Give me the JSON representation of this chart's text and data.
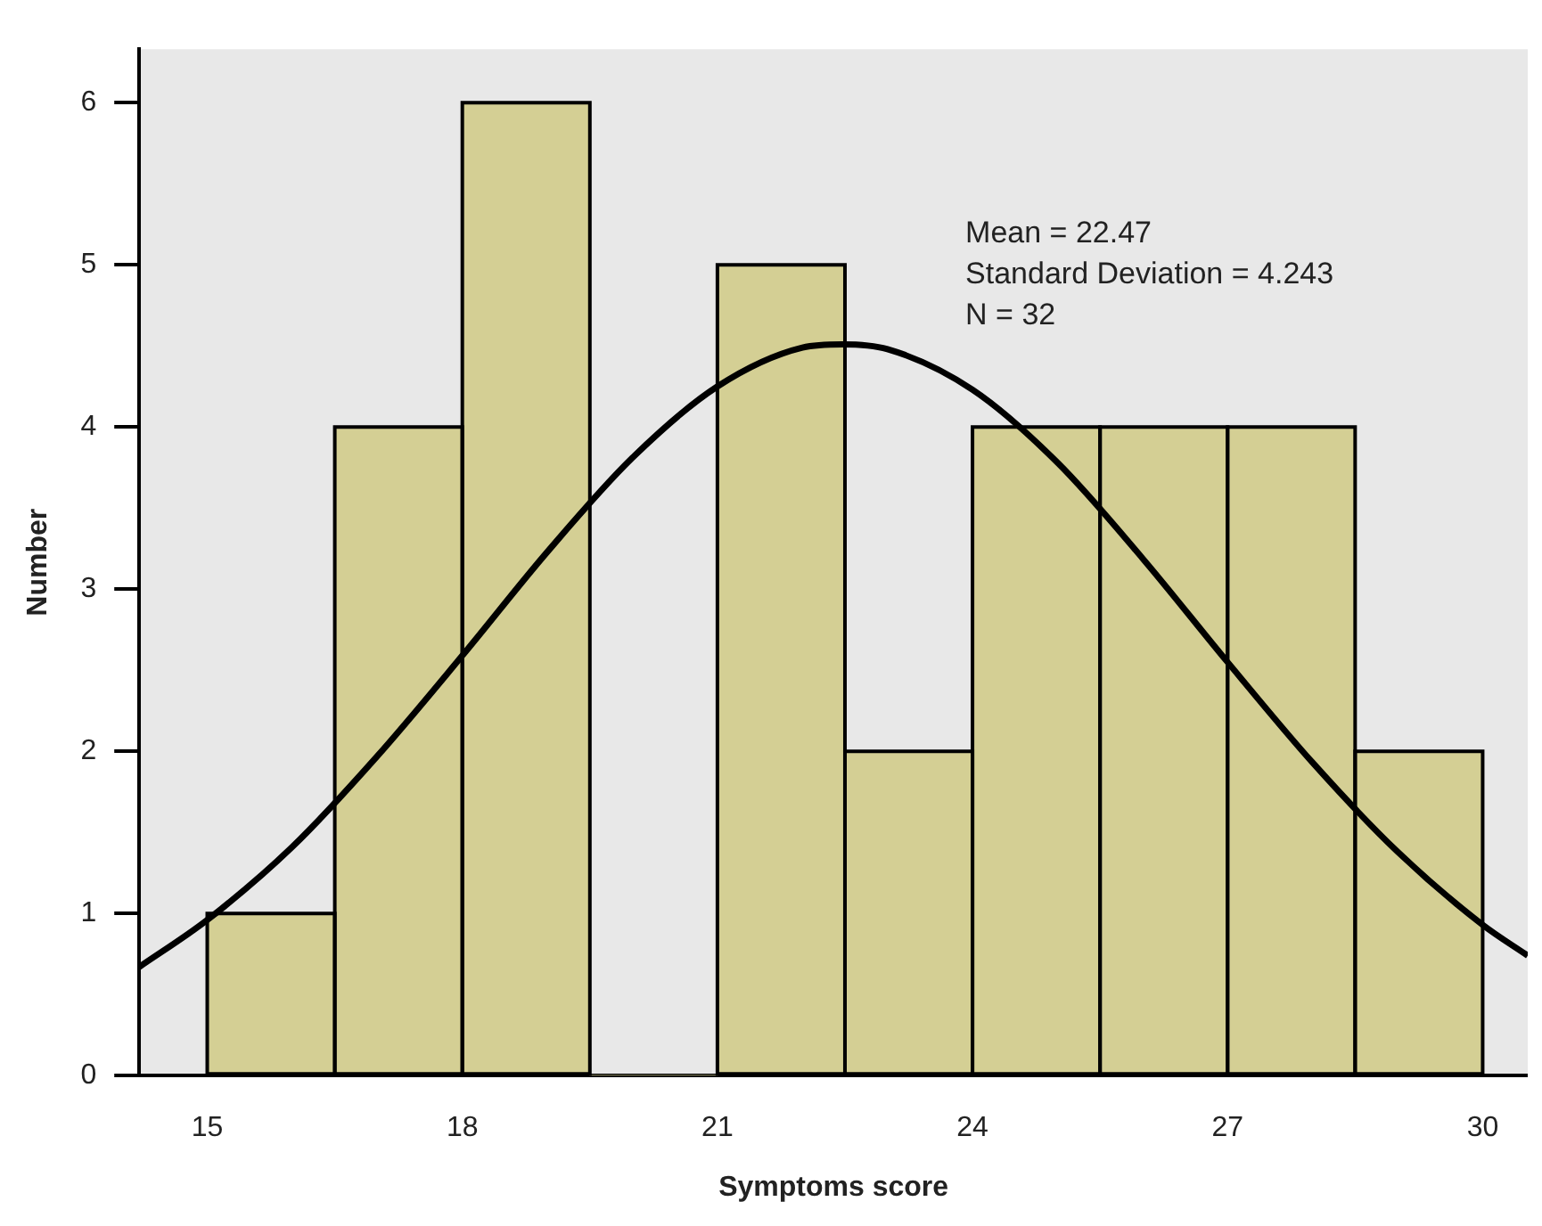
{
  "chart_data": {
    "type": "histogram",
    "xlabel": "Symptoms score",
    "ylabel": "Number",
    "bins": [
      15,
      16.5,
      18,
      19.5,
      21,
      22.5,
      24,
      25.5,
      27,
      28.5,
      30
    ],
    "values": [
      1,
      4,
      6,
      0,
      5,
      2,
      4,
      4,
      4,
      2
    ],
    "color": "#d4cf94",
    "series": [
      {
        "type": "line",
        "color": "#000000",
        "x": [
          14.2,
          15,
          16,
          17,
          18,
          19,
          20,
          21,
          22,
          22.47,
          23,
          24,
          25,
          26,
          27,
          28,
          29,
          30,
          30.53
        ],
        "values": [
          0.67,
          0.96,
          1.41,
          1.97,
          2.59,
          3.23,
          3.81,
          4.25,
          4.49,
          4.51,
          4.48,
          4.23,
          3.78,
          3.19,
          2.55,
          1.93,
          1.38,
          0.93,
          0.74
        ]
      }
    ],
    "xlim": [
      14.2,
      30.53
    ],
    "ylim": [
      0,
      6.33
    ],
    "xticks": [
      15,
      18,
      21,
      24,
      27,
      30
    ],
    "yticks": [
      0,
      1,
      2,
      3,
      4,
      5,
      6
    ],
    "annotations": [
      "Mean = 22.47",
      "Standard Deviation = 4.243",
      "N = 32"
    ]
  }
}
